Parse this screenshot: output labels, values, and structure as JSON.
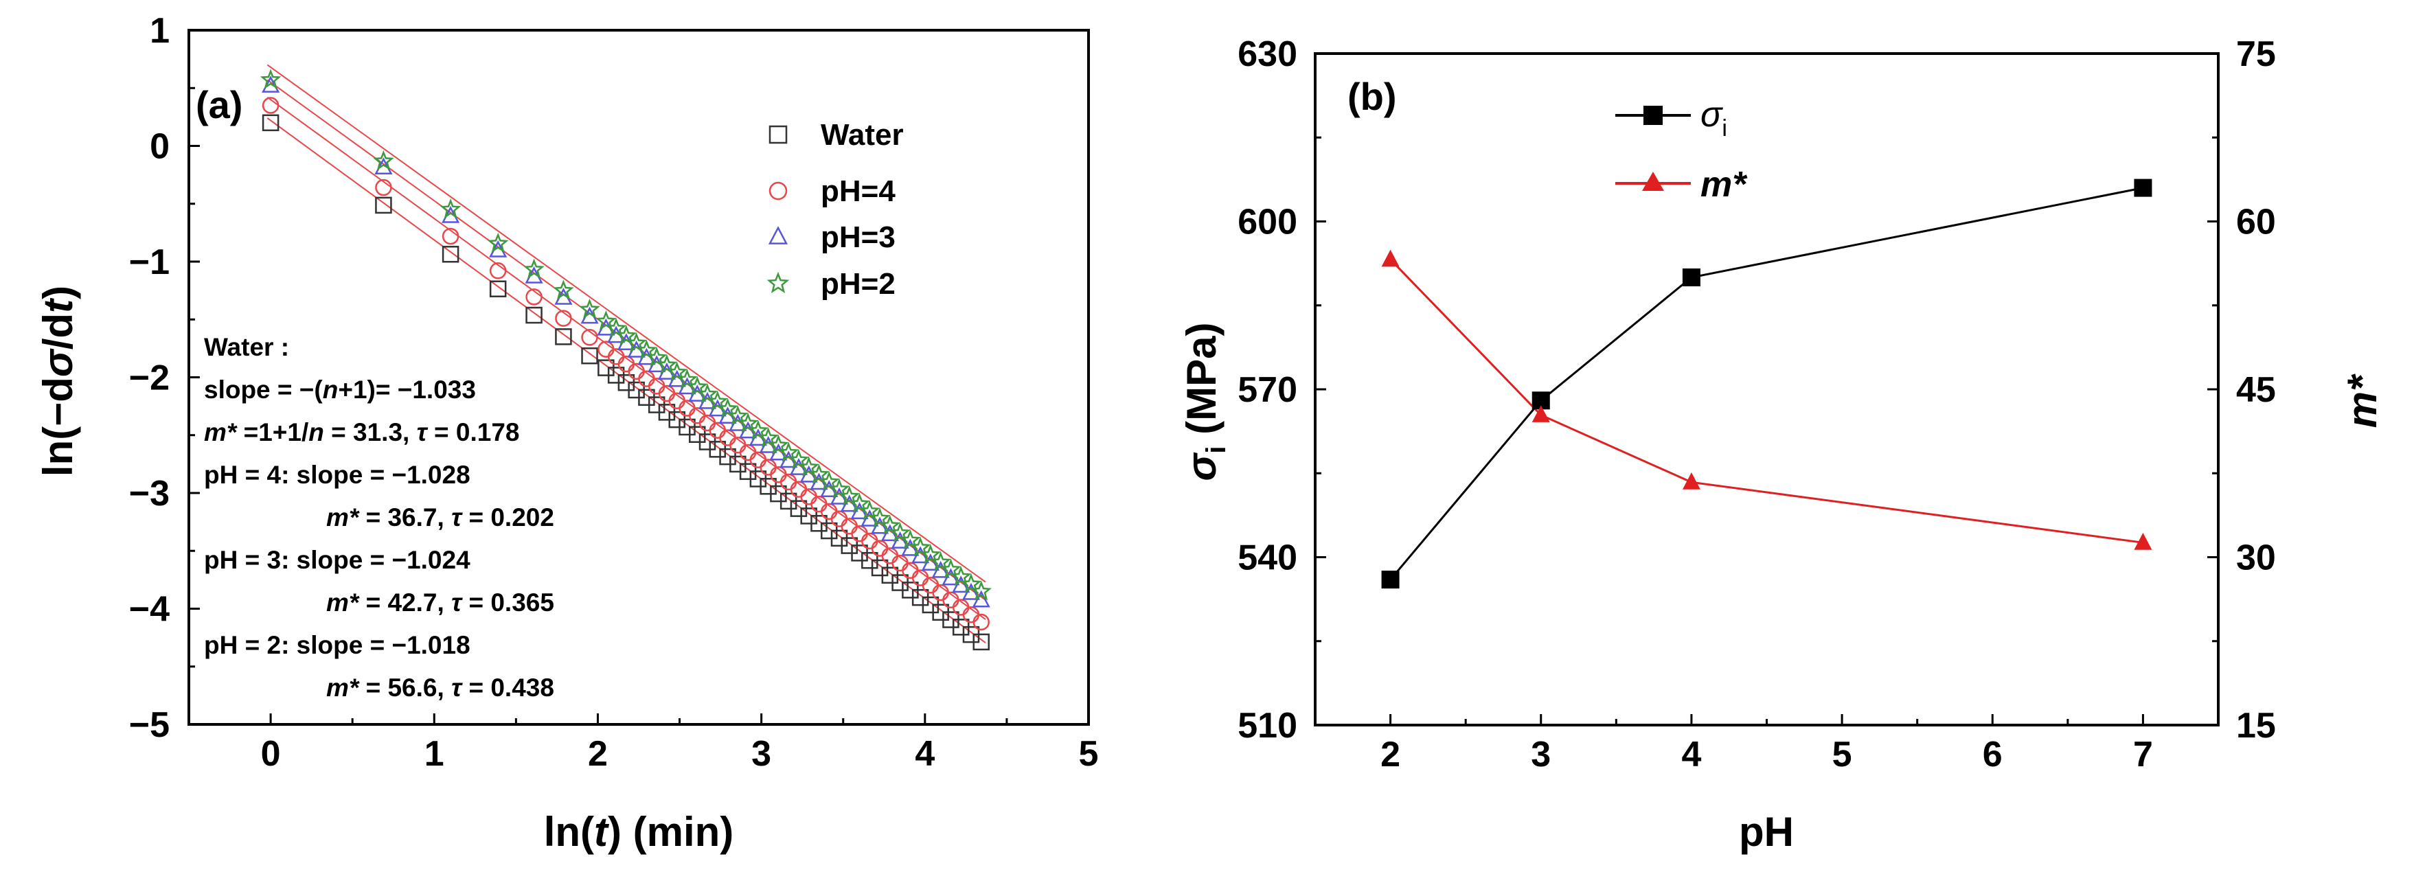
{
  "chart_data": [
    {
      "panel": "(a)",
      "type": "scatter",
      "xlabel": "ln(t) (min)",
      "ylabel": "ln(−dσ/dt)",
      "xlim": [
        -0.5,
        5
      ],
      "ylim": [
        -5,
        1
      ],
      "xticks": [
        "0",
        "1",
        "2",
        "3",
        "4",
        "5"
      ],
      "yticks": [
        "1",
        "0",
        "−1",
        "−2",
        "−3",
        "−4",
        "−5"
      ],
      "legend": [
        "Water",
        "pH=4",
        "pH=3",
        "pH=2"
      ],
      "series": [
        {
          "name": "Water",
          "color": "#333333",
          "marker": "square",
          "intercept": 0.2,
          "slope": -1.033,
          "fit_intercept": 0.22,
          "first_x": [
            0,
            0.69,
            1.1,
            1.39,
            1.61,
            1.79,
            1.95
          ],
          "x_end": 4.37
        },
        {
          "name": "pH=4",
          "color": "#e8474a",
          "marker": "circle",
          "intercept": 0.35,
          "slope": -1.028,
          "fit_intercept": 0.4,
          "first_x": [
            0,
            0.69,
            1.1,
            1.39,
            1.61,
            1.79,
            1.95
          ],
          "x_end": 4.37
        },
        {
          "name": "pH=3",
          "color": "#5555dd",
          "marker": "triangle",
          "intercept": 0.52,
          "slope": -1.024,
          "fit_intercept": 0.55,
          "first_x": [
            0,
            0.69,
            1.1,
            1.39,
            1.61,
            1.79,
            1.95
          ],
          "x_end": 4.37
        },
        {
          "name": "pH=2",
          "color": "#3c9a3c",
          "marker": "star",
          "intercept": 0.57,
          "slope": -1.018,
          "fit_intercept": 0.68,
          "first_x": [
            0,
            0.69,
            1.1,
            1.39,
            1.61,
            1.79,
            1.95
          ],
          "x_end": 4.37
        }
      ],
      "annotations": [
        "Water :",
        "slope = −(n+1)= −1.033",
        "m* =1+1/n = 31.3,   τ = 0.178",
        "pH = 4: slope = −1.028",
        "m* = 36.7,  τ = 0.202",
        "pH = 3: slope = −1.024",
        "m* = 42.7,  τ = 0.365",
        "pH = 2: slope = −1.018",
        "m* = 56.6,  τ = 0.438"
      ]
    },
    {
      "panel": "(b)",
      "type": "line",
      "xlabel": "pH",
      "ylabel_left": "σi (MPa)",
      "ylabel_right": "m*",
      "xlim": [
        1.5,
        7.5
      ],
      "ylim_left": [
        510,
        630
      ],
      "ylim_right": [
        15,
        75
      ],
      "xticks": [
        "2",
        "3",
        "4",
        "5",
        "6",
        "7"
      ],
      "yticks_left": [
        "630",
        "600",
        "570",
        "540",
        "510"
      ],
      "yticks_right": [
        "75",
        "60",
        "45",
        "30",
        "15"
      ],
      "x": [
        2,
        3,
        4,
        7
      ],
      "series": [
        {
          "name": "σi",
          "axis": "left",
          "color": "#000000",
          "marker": "square",
          "values": [
            536,
            568,
            590,
            606
          ]
        },
        {
          "name": "m*",
          "axis": "right",
          "color": "#e02020",
          "marker": "triangle",
          "values": [
            56.6,
            42.7,
            36.7,
            31.3
          ]
        }
      ]
    }
  ]
}
